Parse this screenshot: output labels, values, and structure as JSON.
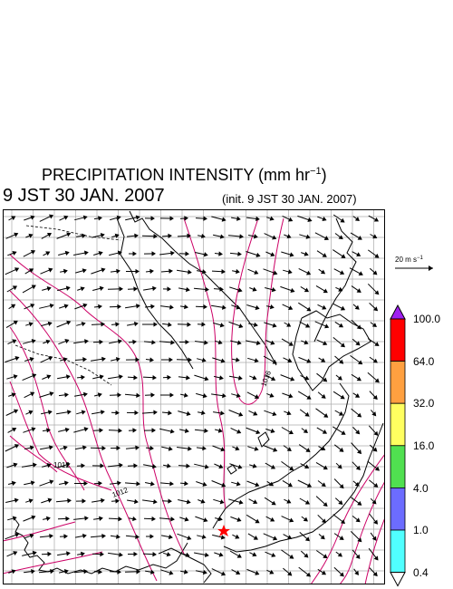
{
  "title": {
    "main": "PRECIPITATION INTENSITY (mm hr",
    "exponent": "−1",
    "close": ")",
    "valid_time": "9 JST 30 JAN. 2007",
    "init_time": "(init. 9 JST 30 JAN. 2007)"
  },
  "reference_vector": {
    "label": "20 m s",
    "exponent": "−1"
  },
  "colorbar": {
    "labels": [
      "100.0",
      "64.0",
      "32.0",
      "16.0",
      "4.0",
      "1.0",
      "0.4"
    ],
    "colors": [
      "#ff0000",
      "#ffa040",
      "#ffff60",
      "#50e050",
      "#6c6cff",
      "#50ffff"
    ],
    "over_color": "#a020f0",
    "under_color": "#ffffff"
  },
  "contours": {
    "color": "#cc0066",
    "labels": [
      "1016",
      "1012",
      "1012"
    ]
  },
  "marker": {
    "color": "#ff0000"
  }
}
